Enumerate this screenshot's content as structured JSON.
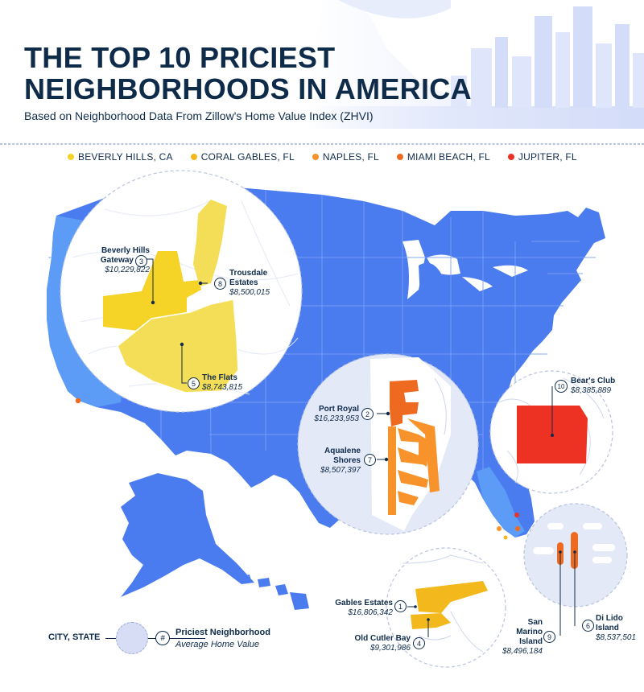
{
  "header": {
    "title_line1": "THE TOP 10 PRICIEST",
    "title_line2": "NEIGHBORHOODS IN AMERICA",
    "subtitle": "Based on Neighborhood Data From Zillow's Home Value Index (ZHVI)"
  },
  "legend": [
    {
      "label": "BEVERLY HILLS, CA",
      "color": "#f5d327"
    },
    {
      "label": "CORAL GABLES, FL",
      "color": "#f3b81c"
    },
    {
      "label": "NAPLES, FL",
      "color": "#f7932a"
    },
    {
      "label": "MIAMI BEACH, FL",
      "color": "#ef6a21"
    },
    {
      "label": "JUPITER, FL",
      "color": "#ed3223"
    }
  ],
  "colors": {
    "title": "#0f2b4a",
    "map_fill": "#4a7cf0",
    "map_highlight": "#5c9cf6",
    "circle_bg": "#e4e9f8",
    "marker": "#ef6a21"
  },
  "neighborhoods": [
    {
      "rank": "1",
      "name": "Gables Estates",
      "value": "$16,806,342",
      "city": "CORAL GABLES, FL"
    },
    {
      "rank": "2",
      "name": "Port Royal",
      "value": "$16,233,953",
      "city": "NAPLES, FL"
    },
    {
      "rank": "3",
      "name_line1": "Beverly Hills",
      "name_line2": "Gateway",
      "value": "$10,229,822",
      "city": "BEVERLY HILLS, CA"
    },
    {
      "rank": "4",
      "name": "Old Cutler Bay",
      "value": "$9,301,986",
      "city": "CORAL GABLES, FL"
    },
    {
      "rank": "5",
      "name": "The Flats",
      "value": "$8,743,815",
      "city": "BEVERLY HILLS, CA"
    },
    {
      "rank": "6",
      "name_line1": "Di Lido",
      "name_line2": "Island",
      "value": "$8,537,501",
      "city": "MIAMI BEACH, FL"
    },
    {
      "rank": "7",
      "name_line1": "Aqualene",
      "name_line2": "Shores",
      "value": "$8,507,397",
      "city": "NAPLES, FL"
    },
    {
      "rank": "8",
      "name_line1": "Trousdale",
      "name_line2": "Estates",
      "value": "$8,500,015",
      "city": "BEVERLY HILLS, CA"
    },
    {
      "rank": "9",
      "name_line1": "San",
      "name_line2": "Marino",
      "name_line3": "Island",
      "value": "$8,496,184",
      "city": "MIAMI BEACH, FL"
    },
    {
      "rank": "10",
      "name": "Bear's Club",
      "value": "$8,385,889",
      "city": "JUPITER, FL"
    }
  ],
  "key": {
    "city_label": "CITY, STATE",
    "number_symbol": "#",
    "neighborhood_label": "Priciest Neighborhood",
    "value_label": "Average Home Value"
  }
}
